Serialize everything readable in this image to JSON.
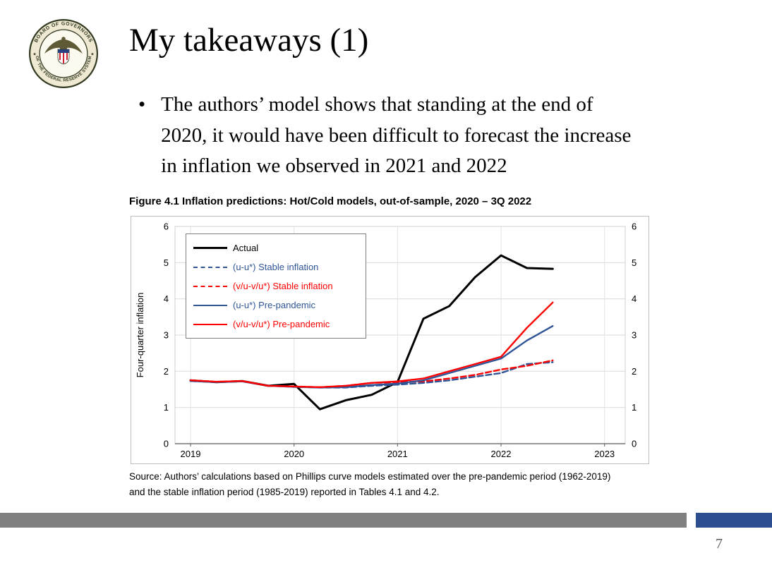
{
  "slide": {
    "title": "My takeaways (1)",
    "bullet_marker": "•",
    "bullet_lines": [
      "The authors’ model shows that standing at the end of",
      "2020, it would have been difficult to forecast the increase",
      "in inflation we observed in 2021 and 2022"
    ],
    "page_number": "7"
  },
  "seal": {
    "ring_text_top": "BOARD OF GOVERNORS",
    "ring_text_bottom": "OF THE FEDERAL RESERVE SYSTEM",
    "star": "★"
  },
  "figure": {
    "title": "Figure 4.1 Inflation predictions: Hot/Cold models, out-of-sample, 2020 – 3Q 2022",
    "source_line1": "Source: Authors’ calculations based on Phillips curve models estimated over the pre-pandemic period (1962-2019)",
    "source_line2": "and the stable inflation period (1985-2019) reported in Tables 4.1 and 4.2."
  },
  "colors": {
    "accent_blue": "#2f5597",
    "accent_red": "#ff0000",
    "bar_gray": "#808080",
    "bar_blue": "#2d4e8e"
  },
  "chart_data": {
    "type": "line",
    "title": "Figure 4.1 Inflation predictions: Hot/Cold models, out-of-sample, 2020 – 3Q 2022",
    "xlabel": "",
    "ylabel": "Four-quarter inflation",
    "ylim": [
      0,
      6
    ],
    "yticks": [
      0,
      1,
      2,
      3,
      4,
      5,
      6
    ],
    "xlim": [
      2018.85,
      2023.2
    ],
    "xticks": [
      2019,
      2020,
      2021,
      2022,
      2023
    ],
    "xtick_labels": [
      "2019",
      "2020",
      "2021",
      "2022",
      "2023"
    ],
    "grid": true,
    "legend_position": "top-left",
    "x_quarters": [
      "2019Q1",
      "2019Q2",
      "2019Q3",
      "2019Q4",
      "2020Q1",
      "2020Q2",
      "2020Q3",
      "2020Q4",
      "2021Q1",
      "2021Q2",
      "2021Q3",
      "2021Q4",
      "2022Q1",
      "2022Q2",
      "2022Q3"
    ],
    "x": [
      2019.0,
      2019.25,
      2019.5,
      2019.75,
      2020.0,
      2020.25,
      2020.5,
      2020.75,
      2021.0,
      2021.25,
      2021.5,
      2021.75,
      2022.0,
      2022.25,
      2022.5
    ],
    "series": [
      {
        "name": "Actual",
        "color": "#000000",
        "style": "solid",
        "width": 3,
        "values": [
          1.75,
          1.7,
          1.73,
          1.6,
          1.65,
          0.95,
          1.2,
          1.35,
          1.7,
          3.45,
          3.8,
          4.6,
          5.2,
          4.85,
          4.83
        ]
      },
      {
        "name": "(u-u*) Stable inflation",
        "color": "#2f5597",
        "style": "dashed",
        "width": 2.4,
        "values": [
          1.73,
          1.7,
          1.72,
          1.6,
          1.57,
          1.55,
          1.55,
          1.6,
          1.63,
          1.68,
          1.75,
          1.85,
          1.95,
          2.2,
          2.25
        ]
      },
      {
        "name": "(v/u-v/u*) Stable inflation",
        "color": "#ff0000",
        "style": "dashed",
        "width": 2.4,
        "values": [
          1.75,
          1.71,
          1.73,
          1.6,
          1.58,
          1.56,
          1.6,
          1.68,
          1.7,
          1.72,
          1.8,
          1.9,
          2.05,
          2.15,
          2.3
        ]
      },
      {
        "name": "(u-u*) Pre-pandemic",
        "color": "#2f5597",
        "style": "solid",
        "width": 2.4,
        "values": [
          1.73,
          1.7,
          1.72,
          1.6,
          1.57,
          1.55,
          1.56,
          1.62,
          1.66,
          1.75,
          1.95,
          2.15,
          2.35,
          2.85,
          3.25
        ]
      },
      {
        "name": "(v/u-v/u*) Pre-pandemic",
        "color": "#ff0000",
        "style": "solid",
        "width": 2.4,
        "values": [
          1.75,
          1.71,
          1.73,
          1.6,
          1.58,
          1.56,
          1.6,
          1.68,
          1.72,
          1.8,
          2.0,
          2.2,
          2.4,
          3.2,
          3.9
        ]
      }
    ]
  }
}
